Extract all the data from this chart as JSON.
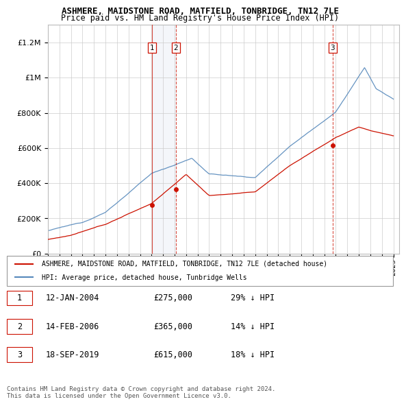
{
  "title": "ASHMERE, MAIDSTONE ROAD, MATFIELD, TONBRIDGE, TN12 7LE",
  "subtitle": "Price paid vs. HM Land Registry's House Price Index (HPI)",
  "ylim": [
    0,
    1300000
  ],
  "yticks": [
    0,
    200000,
    400000,
    600000,
    800000,
    1000000,
    1200000
  ],
  "ytick_labels": [
    "£0",
    "£200K",
    "£400K",
    "£600K",
    "£800K",
    "£1M",
    "£1.2M"
  ],
  "xlim_start": 1995.0,
  "xlim_end": 2025.5,
  "hpi_color": "#5588bb",
  "price_color": "#cc1100",
  "vline_color": "#cc1100",
  "background_color": "#ffffff",
  "grid_color": "#cccccc",
  "purchases": [
    {
      "date_num": 2004.04,
      "price": 275000,
      "label": "1",
      "vline_solid": true
    },
    {
      "date_num": 2006.12,
      "price": 365000,
      "label": "2",
      "vline_solid": false
    },
    {
      "date_num": 2019.72,
      "price": 615000,
      "label": "3",
      "vline_solid": false
    }
  ],
  "legend_entries": [
    "ASHMERE, MAIDSTONE ROAD, MATFIELD, TONBRIDGE, TN12 7LE (detached house)",
    "HPI: Average price, detached house, Tunbridge Wells"
  ],
  "table_rows": [
    {
      "num": "1",
      "date": "12-JAN-2004",
      "price": "£275,000",
      "hpi": "29% ↓ HPI"
    },
    {
      "num": "2",
      "date": "14-FEB-2006",
      "price": "£365,000",
      "hpi": "14% ↓ HPI"
    },
    {
      "num": "3",
      "date": "18-SEP-2019",
      "price": "£615,000",
      "hpi": "18% ↓ HPI"
    }
  ],
  "footer": "Contains HM Land Registry data © Crown copyright and database right 2024.\nThis data is licensed under the Open Government Licence v3.0."
}
